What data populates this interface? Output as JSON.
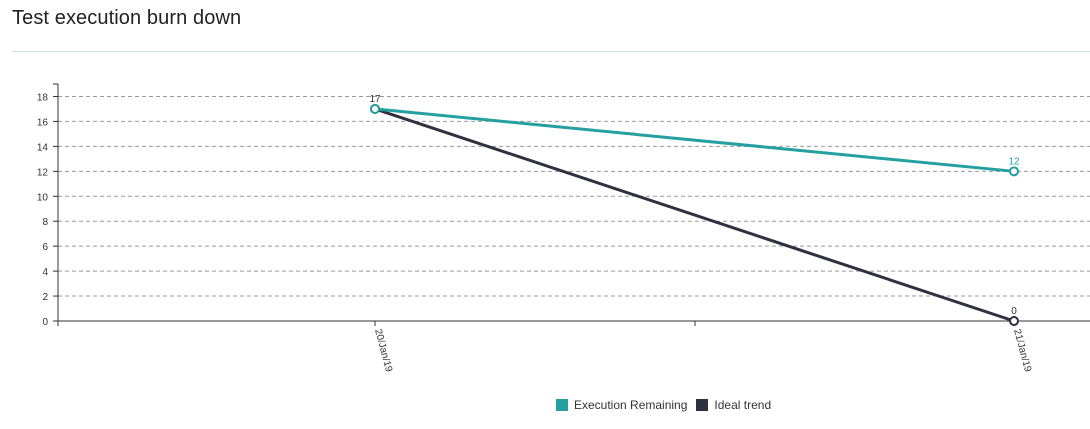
{
  "panel": {
    "title": "Test execution burn down"
  },
  "chart_data": {
    "type": "line",
    "title": "",
    "xlabel": "",
    "ylabel": "",
    "categories": [
      "20/Jan/19",
      "21/Jan/19"
    ],
    "ylim": [
      0,
      19
    ],
    "yticks": [
      0,
      2,
      4,
      6,
      8,
      10,
      12,
      14,
      16,
      18
    ],
    "grid": "horizontal-dashed",
    "legend_position": "bottom",
    "series": [
      {
        "name": "Execution Remaining",
        "color": "#24a0a0",
        "values": [
          17,
          12
        ],
        "point_labels": [
          "",
          "12"
        ]
      },
      {
        "name": "Ideal trend",
        "color": "#2d3140",
        "values": [
          17,
          0
        ],
        "point_labels": [
          "17",
          "0"
        ]
      }
    ]
  }
}
